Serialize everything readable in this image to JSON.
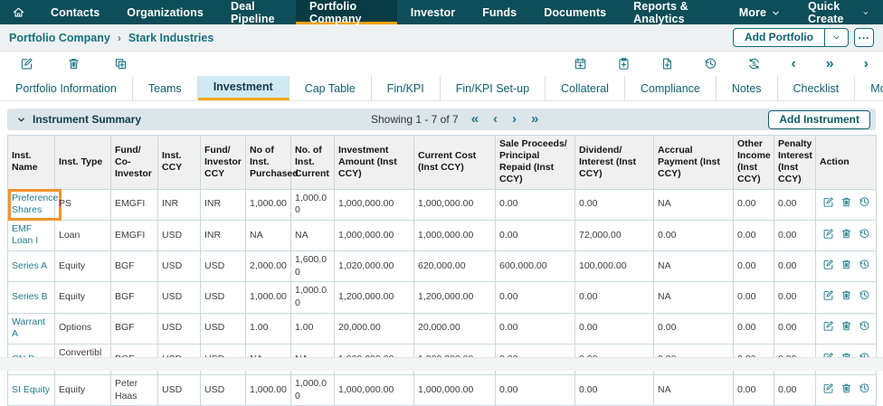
{
  "colors": {
    "nav_bg": "#0d4e59",
    "accent_orange": "#f2a209",
    "teal_icon": "#1e7d8d",
    "highlight_box": "#f2912d",
    "active_tab_bg": "#cfe9f5"
  },
  "nav": {
    "items": [
      {
        "label": "Contacts"
      },
      {
        "label": "Organizations"
      },
      {
        "label": "Deal Pipeline"
      },
      {
        "label": "Portfolio Company",
        "active": true
      },
      {
        "label": "Investor"
      },
      {
        "label": "Funds"
      },
      {
        "label": "Documents"
      },
      {
        "label": "Reports & Analytics"
      },
      {
        "label": "More",
        "dropdown": true
      },
      {
        "label": "Quick Create",
        "dropdown": true
      }
    ]
  },
  "breadcrumb": {
    "parent": "Portfolio Company",
    "separator": "›",
    "current": "Stark Industries"
  },
  "page_actions": {
    "add_portfolio_label": "Add Portfolio",
    "more_label": "..."
  },
  "toolbar": {
    "left_icons": [
      {
        "name": "edit-icon",
        "symbol": "edit"
      },
      {
        "name": "delete-icon",
        "symbol": "trash"
      },
      {
        "name": "copy-icon",
        "symbol": "copy-add"
      }
    ],
    "right_icons": [
      {
        "name": "add-event-icon",
        "symbol": "cal-add"
      },
      {
        "name": "add-task-icon",
        "symbol": "clip-add"
      },
      {
        "name": "add-document-icon",
        "symbol": "doc-add"
      },
      {
        "name": "history-icon",
        "symbol": "history"
      },
      {
        "name": "sync-icon",
        "symbol": "sync"
      },
      {
        "name": "chevron-left-icon",
        "glyph": "‹"
      },
      {
        "name": "double-chevron-right-icon",
        "glyph": "»"
      },
      {
        "name": "chevron-right-icon",
        "glyph": "›"
      }
    ]
  },
  "tabs": {
    "active": "Investment",
    "items": [
      "Portfolio Information",
      "Teams",
      "Investment",
      "Cap Table",
      "Fin/KPI",
      "Fin/KPI Set-up",
      "Collateral",
      "Compliance",
      "Notes",
      "Checklist",
      "More Information"
    ]
  },
  "section": {
    "title": "Instrument Summary",
    "showing_text": "Showing 1 - 7 of 7",
    "pagination": [
      {
        "name": "first-page-icon",
        "glyph": "«"
      },
      {
        "name": "prev-page-icon",
        "glyph": "‹"
      },
      {
        "name": "next-page-icon",
        "glyph": "›"
      },
      {
        "name": "last-page-icon",
        "glyph": "»"
      }
    ],
    "add_instrument_label": "Add Instrument"
  },
  "table": {
    "columns": [
      "Inst. Name",
      "Inst. Type",
      "Fund/ Co- Investor",
      "Inst. CCY",
      "Fund/ Investor CCY",
      "No of Inst. Purchased",
      "No. of Inst. Current",
      "Investment Amount (Inst CCY)",
      "Current Cost (Inst CCY)",
      "Sale Proceeds/ Principal Repaid (Inst CCY)",
      "Dividend/ Interest (Inst CCY)",
      "Accrual Payment (Inst CCY)",
      "Other Income (Inst CCY)",
      "Penalty Interest (Inst CCY)",
      "Action"
    ],
    "row_actions": [
      {
        "name": "edit-row-icon",
        "symbol": "edit"
      },
      {
        "name": "delete-row-icon",
        "symbol": "trash"
      },
      {
        "name": "history-row-icon",
        "symbol": "history"
      }
    ],
    "rows": [
      {
        "highlighted": true,
        "cells": [
          "Preference Shares",
          "PS",
          "EMGFI",
          "INR",
          "INR",
          "1,000.00",
          "1,000.00",
          "1,000,000.00",
          "1,000,000.00",
          "0.00",
          "0.00",
          "NA",
          "0.00",
          "0.00"
        ]
      },
      {
        "highlighted": false,
        "cells": [
          "EMF Loan I",
          "Loan",
          "EMGFI",
          "USD",
          "INR",
          "NA",
          "NA",
          "1,000,000.00",
          "1,000,000.00",
          "0.00",
          "72,000.00",
          "0.00",
          "0.00",
          "0.00"
        ]
      },
      {
        "highlighted": false,
        "cells": [
          "Series A",
          "Equity",
          "BGF",
          "USD",
          "USD",
          "2,000.00",
          "1,600.00",
          "1,020,000.00",
          "620,000.00",
          "600,000.00",
          "100,000.00",
          "NA",
          "0.00",
          "0.00"
        ]
      },
      {
        "highlighted": false,
        "cells": [
          "Series B",
          "Equity",
          "BGF",
          "USD",
          "USD",
          "1,000.00",
          "1,000.00",
          "1,200,000.00",
          "1,200,000.00",
          "0.00",
          "0.00",
          "NA",
          "0.00",
          "0.00"
        ]
      },
      {
        "highlighted": false,
        "cells": [
          "Warrant A",
          "Options",
          "BGF",
          "USD",
          "USD",
          "1.00",
          "1.00",
          "20,000.00",
          "20,000.00",
          "0.00",
          "0.00",
          "0.00",
          "0.00",
          "0.00"
        ]
      },
      {
        "highlighted": false,
        "cells": [
          "CN B",
          "Convertible Note",
          "BGF",
          "USD",
          "USD",
          "NA",
          "NA",
          "1,000,000.00",
          "1,000,000.00",
          "0.00",
          "0.00",
          "0.00",
          "0.00",
          "0.00"
        ]
      },
      {
        "highlighted": false,
        "cells": [
          "SI Equity",
          "Equity",
          "Peter Haas",
          "USD",
          "USD",
          "1,000.00",
          "1,000.00",
          "1,000,000.00",
          "1,000,000.00",
          "0.00",
          "0.00",
          "NA",
          "0.00",
          "0.00"
        ]
      }
    ]
  }
}
